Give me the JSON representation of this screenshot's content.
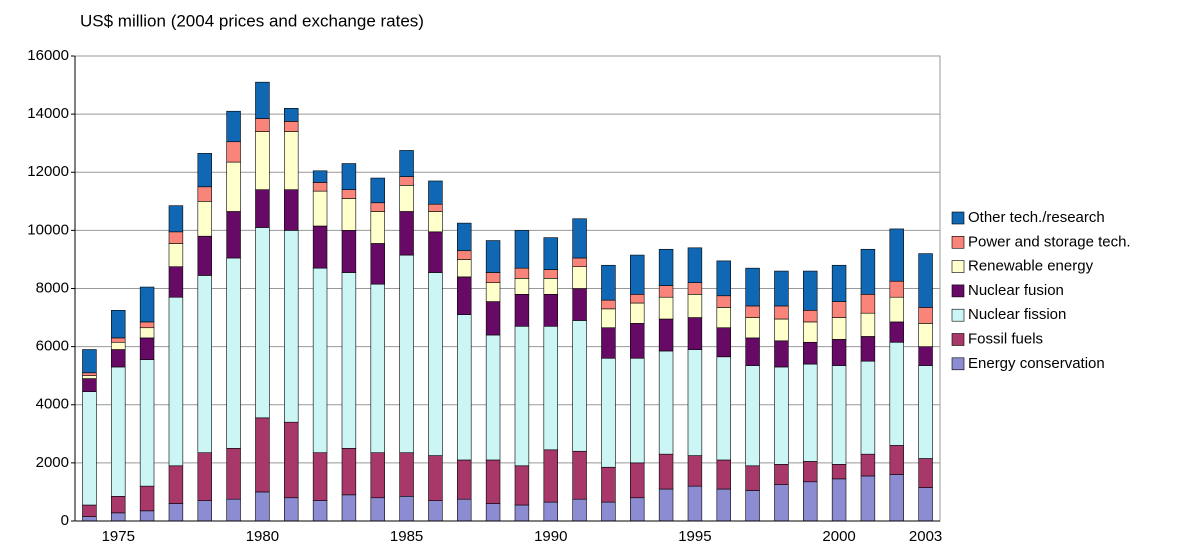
{
  "chart_data": {
    "type": "stacked-bar",
    "y_label": "US$ million (2004 prices and exchange rates)",
    "categories": [
      null,
      "1975",
      null,
      null,
      null,
      null,
      "1980",
      null,
      null,
      null,
      null,
      "1985",
      null,
      null,
      null,
      null,
      "1990",
      null,
      null,
      null,
      null,
      "1995",
      null,
      null,
      null,
      null,
      "2000",
      null,
      null,
      "2003"
    ],
    "series": [
      {
        "name": "Energy conservation",
        "color": "#8c8cd2",
        "values": [
          150,
          280,
          350,
          600,
          700,
          750,
          1000,
          800,
          700,
          900,
          800,
          850,
          700,
          750,
          600,
          550,
          650,
          750,
          650,
          800,
          1100,
          1200,
          1100,
          1050,
          1250,
          1350,
          1450,
          1550,
          1600,
          1150
        ]
      },
      {
        "name": "Fossil fuels",
        "color": "#a8386a",
        "values": [
          400,
          570,
          850,
          1300,
          1650,
          1750,
          2550,
          2600,
          1650,
          1600,
          1550,
          1500,
          1550,
          1350,
          1500,
          1350,
          1800,
          1650,
          1200,
          1200,
          1200,
          1050,
          1000,
          850,
          700,
          700,
          500,
          750,
          1000,
          1000
        ]
      },
      {
        "name": "Nuclear fission",
        "color": "#ccf5f5",
        "values": [
          3900,
          4450,
          4350,
          5800,
          6100,
          6550,
          6550,
          6600,
          6350,
          6050,
          5800,
          6800,
          6300,
          5000,
          4300,
          4800,
          4250,
          4500,
          3750,
          3600,
          3550,
          3650,
          3550,
          3450,
          3350,
          3350,
          3400,
          3200,
          3550,
          3200
        ]
      },
      {
        "name": "Nuclear fusion",
        "color": "#660a66",
        "values": [
          450,
          600,
          750,
          1050,
          1350,
          1600,
          1300,
          1400,
          1450,
          1450,
          1400,
          1500,
          1400,
          1300,
          1150,
          1100,
          1100,
          1100,
          1050,
          1200,
          1100,
          1100,
          1000,
          950,
          900,
          750,
          900,
          850,
          700,
          650
        ]
      },
      {
        "name": "Renewable energy",
        "color": "#ffffcc",
        "values": [
          100,
          250,
          350,
          800,
          1200,
          1700,
          2000,
          2000,
          1200,
          1100,
          1100,
          900,
          700,
          600,
          650,
          550,
          550,
          750,
          650,
          700,
          750,
          800,
          700,
          700,
          750,
          700,
          750,
          800,
          850,
          800
        ]
      },
      {
        "name": "Power and storage tech.",
        "color": "#f8847a",
        "values": [
          100,
          150,
          200,
          400,
          500,
          700,
          450,
          350,
          300,
          300,
          300,
          300,
          250,
          300,
          350,
          350,
          300,
          300,
          300,
          300,
          400,
          400,
          400,
          400,
          450,
          400,
          550,
          650,
          550,
          550
        ]
      },
      {
        "name": "Other tech./research",
        "color": "#1068b4",
        "values": [
          800,
          950,
          1200,
          900,
          1150,
          1050,
          1250,
          450,
          400,
          900,
          850,
          900,
          800,
          950,
          1100,
          1300,
          1100,
          1350,
          1200,
          1350,
          1250,
          1200,
          1200,
          1300,
          1200,
          1350,
          1250,
          1550,
          1800,
          1850
        ]
      }
    ],
    "ylim": [
      0,
      16000
    ],
    "yticks": [
      0,
      2000,
      4000,
      6000,
      8000,
      10000,
      12000,
      14000,
      16000
    ],
    "grid": true,
    "legend": "right"
  }
}
